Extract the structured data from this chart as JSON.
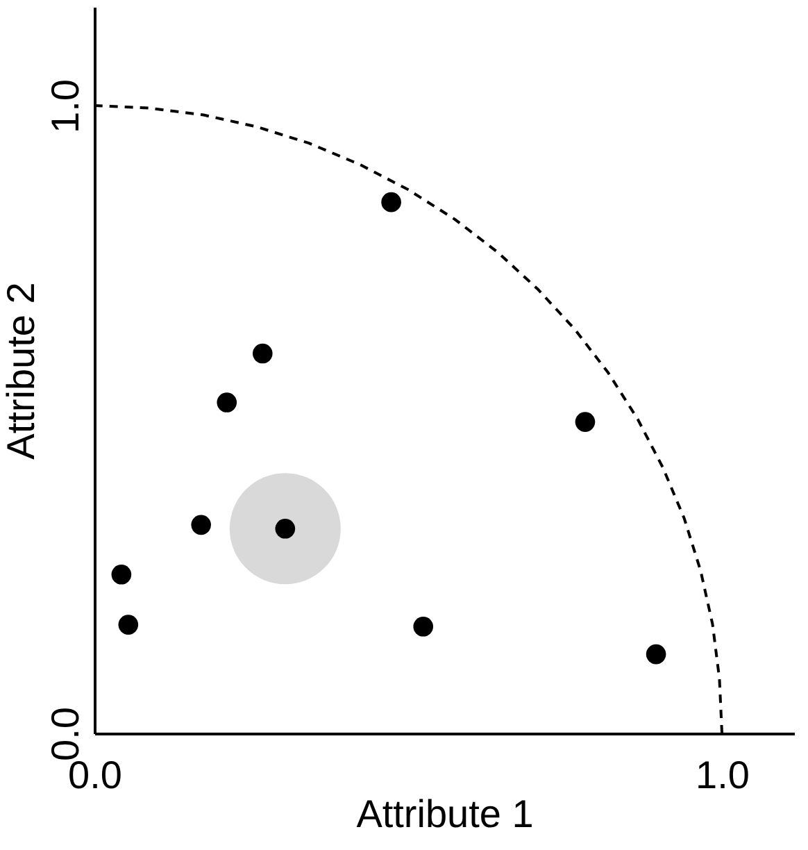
{
  "chart_data": {
    "type": "bubble",
    "xlabel": "Attribute 1",
    "ylabel": "Attribute 2",
    "xlim": [
      0,
      1.115
    ],
    "ylim": [
      0,
      1.157
    ],
    "xticks": [
      {
        "value": 0,
        "label": "0.0"
      },
      {
        "value": 1,
        "label": "1.0"
      }
    ],
    "yticks": [
      {
        "value": 0,
        "label": "0.0"
      },
      {
        "value": 1,
        "label": "1.0"
      }
    ],
    "series": [
      {
        "color": "#d9d9d9",
        "x": [
          0.304
        ],
        "values": [
          0.326
        ],
        "sizes": [
          1
        ]
      },
      {
        "type": "line",
        "color": "#000000",
        "line_style": "dashed",
        "x": [
          1,
          0.996,
          0.985,
          0.966,
          0.94,
          0.906,
          0.866,
          0.819,
          0.766,
          0.707,
          0.643,
          0.574,
          0.5,
          0.423,
          0.342,
          0.259,
          0.174,
          0.087,
          0
        ],
        "values": [
          0,
          0.087,
          0.174,
          0.259,
          0.342,
          0.423,
          0.5,
          0.574,
          0.643,
          0.707,
          0.766,
          0.819,
          0.866,
          0.906,
          0.94,
          0.966,
          0.985,
          0.996,
          1
        ]
      },
      {
        "color": "#000000",
        "x": [
          0.473,
          0.268,
          0.211,
          0.782,
          0.17,
          0.304,
          0.043,
          0.054,
          0.524,
          0.895
        ],
        "values": [
          0.846,
          0.605,
          0.527,
          0.496,
          0.332,
          0.326,
          0.253,
          0.173,
          0.17,
          0.126
        ],
        "sizes": [
          0.032,
          0.032,
          0.032,
          0.032,
          0.032,
          0.032,
          0.032,
          0.032,
          0.032,
          0.032
        ]
      }
    ]
  }
}
